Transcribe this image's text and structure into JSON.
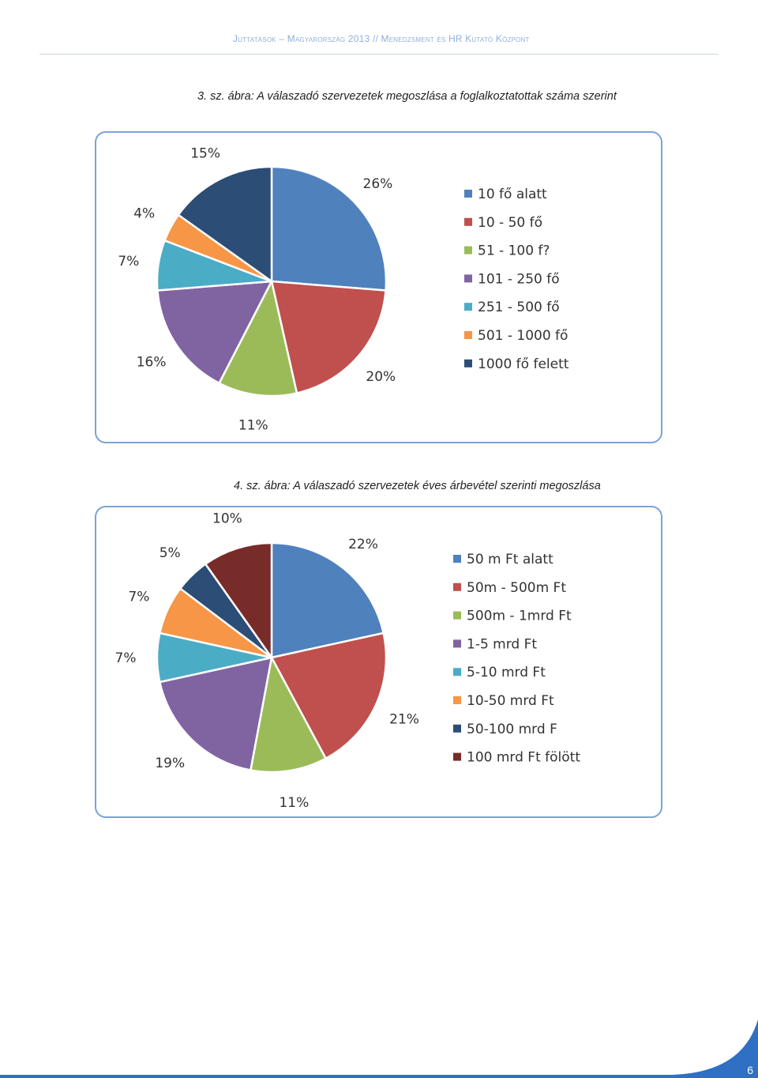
{
  "header": {
    "text": "Juttatások – Magyarország 2013 // Menedzsment és HR Kutató Központ"
  },
  "captions": {
    "chart1": "3. sz. ábra: A válaszadó szervezetek megoszlása a foglalkoztatottak száma szerint",
    "chart2": "4. sz. ábra: A válaszadó szervezetek éves árbevétel szerinti megoszlása"
  },
  "page_number": "6",
  "chart_data": [
    {
      "type": "pie",
      "title": "",
      "categories": [
        "10 fő alatt",
        "10 - 50 fő",
        "51 - 100 f?",
        "101 - 250 fő",
        "251 - 500 fő",
        "501 - 1000 fő",
        "1000 fő felett"
      ],
      "values": [
        26,
        20,
        11,
        16,
        7,
        4,
        15
      ],
      "labels": [
        "26%",
        "20%",
        "11%",
        "16%",
        "7%",
        "4%",
        "15%"
      ],
      "colors": [
        "#4f81bd",
        "#c0504d",
        "#9bbb59",
        "#8064a2",
        "#4bacc6",
        "#f79646",
        "#2c4d75"
      ],
      "legend_position": "right"
    },
    {
      "type": "pie",
      "title": "",
      "categories": [
        "50 m Ft alatt",
        "50m - 500m Ft",
        "500m - 1mrd Ft",
        "1-5 mrd Ft",
        "5-10 mrd Ft",
        "10-50 mrd Ft",
        "50-100 mrd F",
        "100 mrd Ft fölött"
      ],
      "values": [
        22,
        21,
        11,
        19,
        7,
        7,
        5,
        10
      ],
      "labels": [
        "22%",
        "21%",
        "11%",
        "19%",
        "7%",
        "7%",
        "5%",
        "10%"
      ],
      "colors": [
        "#4f81bd",
        "#c0504d",
        "#9bbb59",
        "#8064a2",
        "#4bacc6",
        "#f79646",
        "#2c4d75",
        "#772c2a"
      ],
      "legend_position": "right"
    }
  ]
}
